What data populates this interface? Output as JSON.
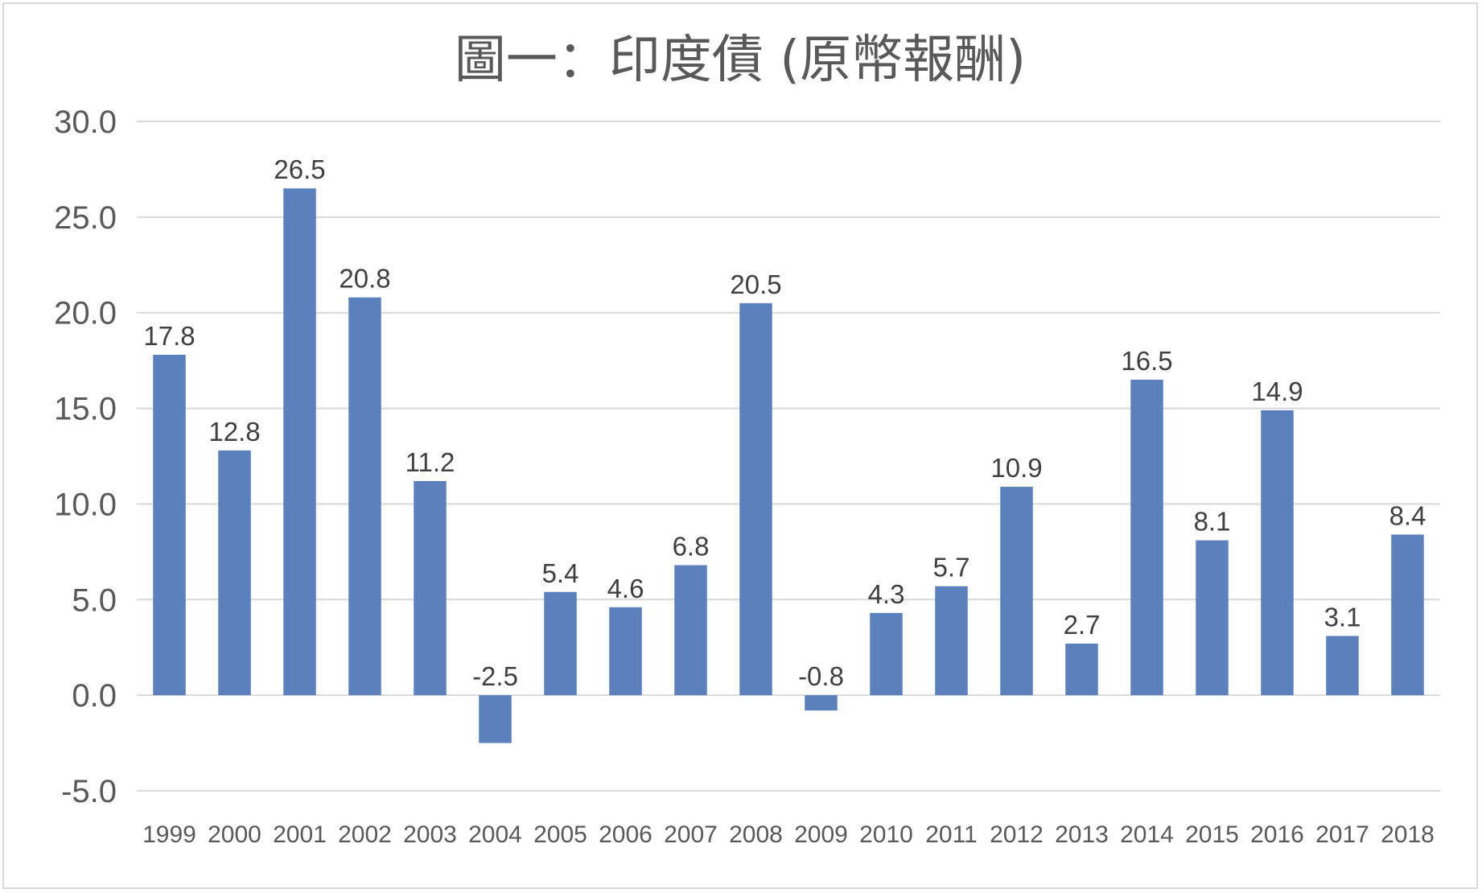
{
  "chart_data": {
    "type": "bar",
    "title": "圖一：印度債 (原幣報酬)",
    "xlabel": "",
    "ylabel": "",
    "categories": [
      "1999",
      "2000",
      "2001",
      "2002",
      "2003",
      "2004",
      "2005",
      "2006",
      "2007",
      "2008",
      "2009",
      "2010",
      "2011",
      "2012",
      "2013",
      "2014",
      "2015",
      "2016",
      "2017",
      "2018"
    ],
    "values": [
      17.8,
      12.8,
      26.5,
      20.8,
      11.2,
      -2.5,
      5.4,
      4.6,
      6.8,
      20.5,
      -0.8,
      4.3,
      5.7,
      10.9,
      2.7,
      16.5,
      8.1,
      14.9,
      3.1,
      8.4
    ],
    "data_labels": [
      "17.8",
      "12.8",
      "26.5",
      "20.8",
      "11.2",
      "-2.5",
      "5.4",
      "4.6",
      "6.8",
      "20.5",
      "-0.8",
      "4.3",
      "5.7",
      "10.9",
      "2.7",
      "16.5",
      "8.1",
      "14.9",
      "3.1",
      "8.4"
    ],
    "y_ticks": [
      "30.0",
      "25.0",
      "20.0",
      "15.0",
      "10.0",
      "5.0",
      "0.0",
      "-5.0"
    ],
    "ylim": [
      -5,
      30
    ],
    "y_tick_values": [
      30,
      25,
      20,
      15,
      10,
      5,
      0,
      -5
    ],
    "grid": true,
    "legend": "none",
    "bar_color": "#5a81bb",
    "grid_color": "#d9d9d9"
  }
}
